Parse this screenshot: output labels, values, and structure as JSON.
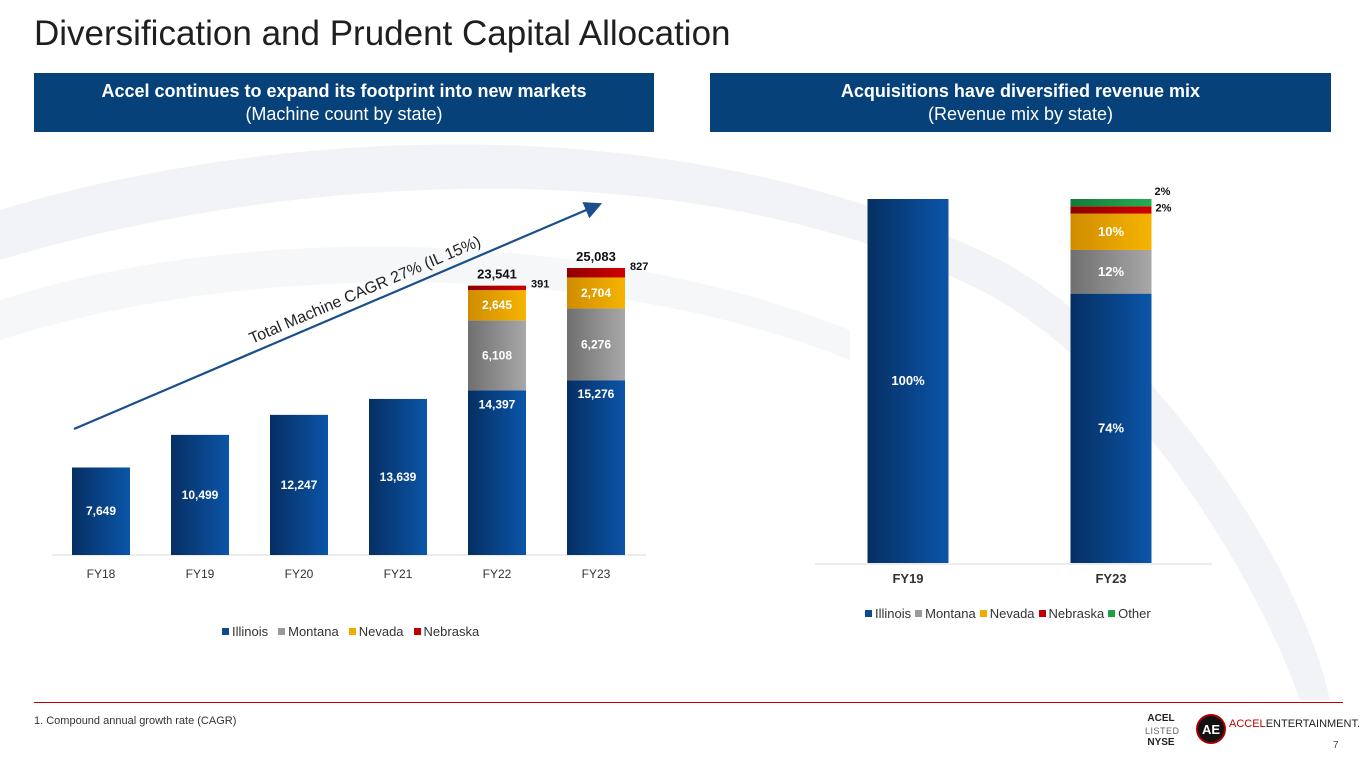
{
  "page": {
    "title": "Diversification and Prudent Capital Allocation",
    "page_number": "7",
    "footnote": "1. Compound annual growth rate (CAGR)"
  },
  "left_header": {
    "line1": "Accel continues to expand its footprint into new markets",
    "line2": "(Machine count by state)"
  },
  "right_header": {
    "line1": "Acquisitions have diversified revenue mix",
    "line2": "(Revenue mix by state)"
  },
  "branding": {
    "ticker": "ACEL",
    "listed": "LISTED",
    "exchange": "NYSE",
    "logo_text": "AE",
    "brand_accent": "ACCEL",
    "brand_rest": "ENTERTAINMENT."
  },
  "colors": {
    "Illinois": "#0a4a93",
    "Montana": "#9a9a9a",
    "Nevada": "#f0aa00",
    "Nebraska": "#c00000",
    "Other": "#1f9e48",
    "header_bg": "#06417a",
    "arrow": "#1a4e8c"
  },
  "chart_data": [
    {
      "type": "bar",
      "stacked": true,
      "title": "Machine count by state",
      "categories": [
        "FY18",
        "FY19",
        "FY20",
        "FY21",
        "FY22",
        "FY23"
      ],
      "series": [
        {
          "name": "Illinois",
          "values": [
            7649,
            10499,
            12247,
            13639,
            14397,
            15276
          ],
          "labels": [
            "7,649",
            "10,499",
            "12,247",
            "13,639",
            "14,397",
            "15,276"
          ]
        },
        {
          "name": "Montana",
          "values": [
            0,
            0,
            0,
            0,
            6108,
            6276
          ],
          "labels": [
            "",
            "",
            "",
            "",
            "6,108",
            "6,276"
          ]
        },
        {
          "name": "Nevada",
          "values": [
            0,
            0,
            0,
            0,
            2645,
            2704
          ],
          "labels": [
            "",
            "",
            "",
            "",
            "2,645",
            "2,704"
          ]
        },
        {
          "name": "Nebraska",
          "values": [
            0,
            0,
            0,
            0,
            391,
            827
          ],
          "labels": [
            "",
            "",
            "",
            "",
            "391",
            "827"
          ]
        }
      ],
      "totals": [
        "",
        "",
        "",
        "",
        "23,541",
        "25,083"
      ],
      "annotation": "Total Machine CAGR 27% (IL 15%)",
      "legend": [
        "Illinois",
        "Montana",
        "Nevada",
        "Nebraska"
      ],
      "legend_position": "bottom",
      "ylim": [
        0,
        25083
      ],
      "grid": false
    },
    {
      "type": "bar",
      "stacked": true,
      "title": "Revenue mix by state",
      "categories": [
        "FY19",
        "FY23"
      ],
      "series": [
        {
          "name": "Illinois",
          "values": [
            100,
            74
          ],
          "labels": [
            "100%",
            "74%"
          ]
        },
        {
          "name": "Montana",
          "values": [
            0,
            12
          ],
          "labels": [
            "",
            "12%"
          ]
        },
        {
          "name": "Nevada",
          "values": [
            0,
            10
          ],
          "labels": [
            "",
            "10%"
          ]
        },
        {
          "name": "Nebraska",
          "values": [
            0,
            2
          ],
          "labels": [
            "",
            "2%"
          ]
        },
        {
          "name": "Other",
          "values": [
            0,
            2
          ],
          "labels": [
            "",
            "2%"
          ]
        }
      ],
      "legend": [
        "Illinois",
        "Montana",
        "Nevada",
        "Nebraska",
        "Other"
      ],
      "legend_position": "bottom",
      "ylim": [
        0,
        100
      ],
      "unit": "%",
      "grid": false
    }
  ]
}
